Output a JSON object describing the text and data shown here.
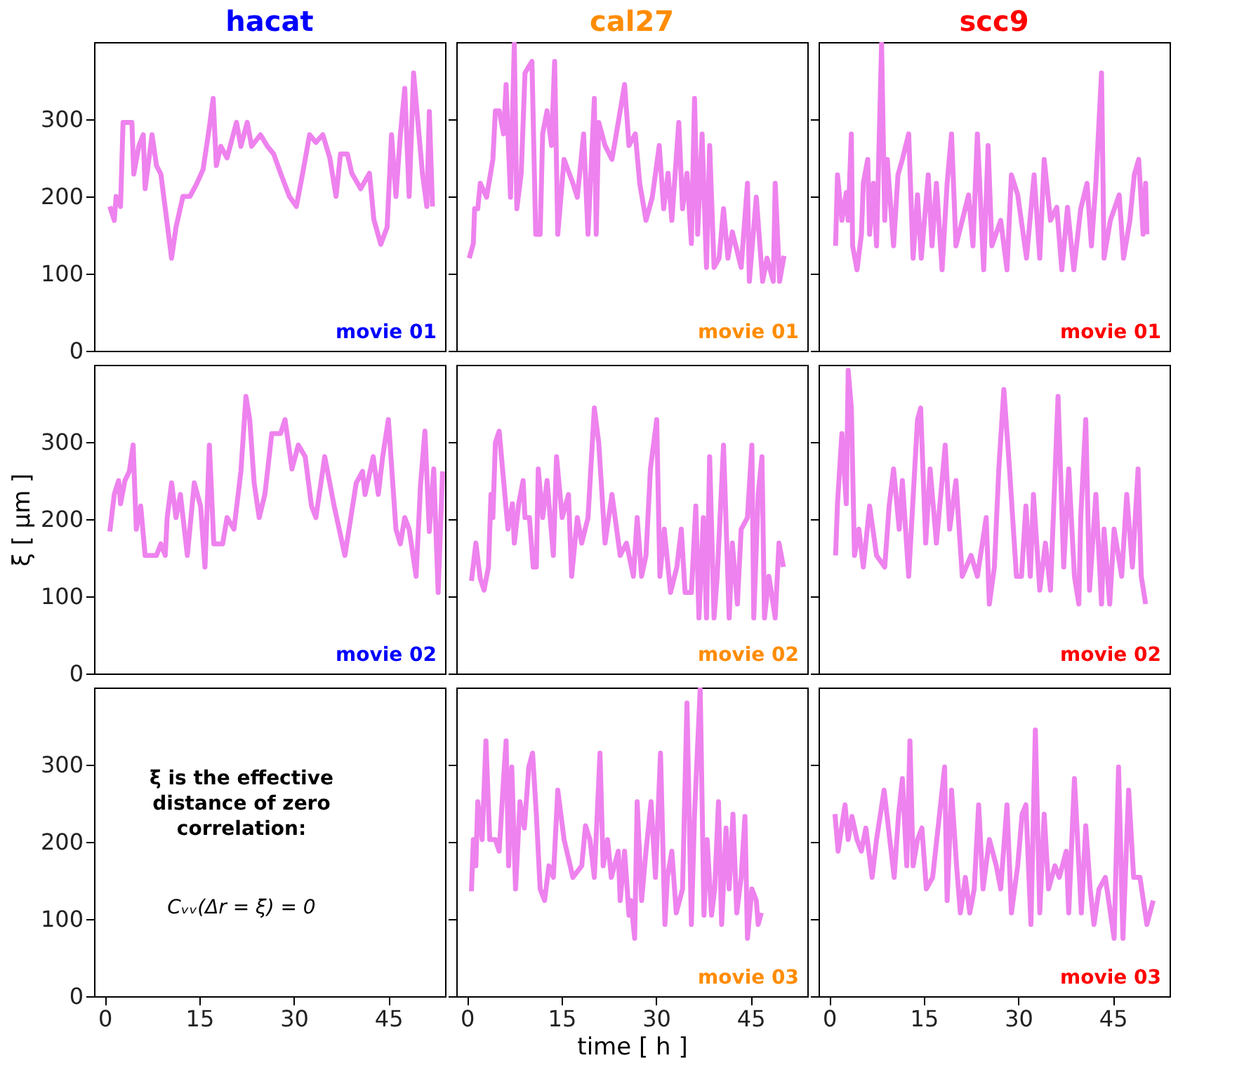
{
  "chart_data": [
    {
      "type": "line",
      "title": "hacat",
      "xlim": [
        -1.7,
        54
      ],
      "ylim": [
        0,
        400
      ],
      "yticks": [
        0,
        100,
        200,
        300
      ],
      "tick_labels": "y",
      "grid": false,
      "annotations": [
        "movie 01"
      ],
      "series": [
        {
          "color": "#ee82ee",
          "x": [
            0.8,
            1.5,
            1.8,
            2.5,
            2.9,
            4.3,
            4.6,
            5.4,
            6.1,
            6.4,
            7.5,
            8.2,
            8.9,
            10.6,
            11.3,
            12.4,
            13.5,
            14.5,
            15.6,
            16.6,
            17.2,
            17.7,
            18.4,
            19.4,
            20.9,
            21.6,
            22.6,
            23.3,
            24.7,
            25.8,
            26.8,
            27.9,
            29.3,
            30.4,
            31.4,
            32.5,
            33.5,
            34.6,
            35.7,
            36.7,
            37.4,
            38.5,
            39.2,
            40.6,
            42.0,
            42.7,
            43.8,
            44.8,
            45.5,
            46.2,
            46.9,
            47.6,
            48.3,
            49.0,
            50.4,
            51.1,
            51.5,
            52.0
          ],
          "values": [
            187,
            169,
            200,
            187,
            296,
            296,
            229,
            265,
            280,
            210,
            280,
            240,
            229,
            120,
            160,
            200,
            200,
            215,
            235,
            290,
            327,
            240,
            265,
            250,
            296,
            265,
            296,
            265,
            280,
            265,
            255,
            230,
            200,
            187,
            230,
            280,
            270,
            280,
            250,
            200,
            255,
            255,
            230,
            210,
            230,
            170,
            138,
            160,
            280,
            200,
            280,
            340,
            200,
            360,
            230,
            187,
            310,
            187
          ]
        }
      ]
    },
    {
      "type": "line",
      "title": "cal27",
      "xlim": [
        -1.7,
        54
      ],
      "ylim": [
        0,
        400
      ],
      "yticks": [
        0,
        100,
        200,
        300
      ],
      "tick_labels": false,
      "grid": false,
      "annotations": [
        "movie 01"
      ],
      "series": [
        {
          "color": "#ee82ee",
          "x": [
            0.35,
            1.0,
            1.2,
            1.7,
            2.1,
            3.1,
            4.1,
            4.5,
            5.1,
            5.8,
            6.2,
            6.9,
            7.5,
            7.9,
            8.6,
            9.2,
            10.3,
            10.9,
            11.6,
            12.0,
            12.7,
            13.4,
            13.9,
            14.4,
            15.4,
            16.8,
            17.5,
            18.5,
            19.2,
            20.2,
            20.5,
            20.9,
            21.9,
            23.0,
            24.0,
            25.0,
            25.7,
            26.7,
            27.4,
            28.4,
            29.4,
            30.5,
            31.2,
            31.9,
            32.5,
            33.6,
            34.2,
            34.9,
            35.6,
            36.1,
            36.6,
            37.3,
            38.0,
            38.5,
            39.2,
            40.0,
            40.7,
            41.4,
            42.1,
            43.5,
            44.5,
            44.8,
            45.9,
            46.9,
            47.6,
            48.6,
            48.9,
            49.6,
            50.3
          ],
          "values": [
            120,
            139,
            184,
            184,
            217,
            199,
            248,
            311,
            311,
            281,
            345,
            199,
            398,
            184,
            230,
            360,
            375,
            151,
            151,
            281,
            311,
            266,
            375,
            151,
            248,
            217,
            199,
            281,
            151,
            327,
            151,
            296,
            266,
            248,
            296,
            345,
            266,
            281,
            217,
            169,
            199,
            266,
            184,
            230,
            169,
            296,
            184,
            230,
            139,
            327,
            151,
            281,
            108,
            266,
            108,
            120,
            184,
            120,
            154,
            108,
            217,
            90,
            199,
            90,
            120,
            90,
            217,
            90,
            123
          ]
        }
      ]
    },
    {
      "type": "line",
      "title": "scc9",
      "xlim": [
        -1.7,
        54
      ],
      "ylim": [
        0,
        400
      ],
      "yticks": [
        0,
        100,
        200,
        300
      ],
      "tick_labels": false,
      "grid": false,
      "annotations": [
        "movie 01"
      ],
      "series": [
        {
          "color": "#ee82ee",
          "x": [
            1.0,
            1.3,
            2.0,
            2.7,
            3.0,
            3.5,
            3.7,
            4.4,
            5.1,
            5.4,
            6.1,
            6.4,
            7.0,
            7.5,
            8.3,
            8.8,
            9.2,
            10.2,
            10.9,
            11.6,
            12.6,
            13.3,
            14.0,
            14.6,
            15.7,
            16.3,
            17.0,
            17.9,
            18.7,
            19.4,
            20.1,
            21.1,
            22.1,
            22.8,
            23.5,
            24.5,
            25.2,
            25.8,
            27.2,
            28.2,
            28.9,
            29.9,
            31.3,
            32.5,
            33.4,
            34.1,
            35.1,
            36.1,
            36.9,
            37.8,
            38.8,
            39.9,
            40.9,
            41.6,
            42.3,
            43.2,
            43.6,
            44.6,
            46.0,
            46.7,
            47.7,
            48.4,
            49.1,
            49.8,
            50.2,
            50.4
          ],
          "values": [
            136,
            228,
            169,
            205,
            169,
            281,
            136,
            105,
            151,
            217,
            248,
            151,
            217,
            136,
            398,
            169,
            248,
            136,
            228,
            248,
            281,
            120,
            202,
            120,
            228,
            136,
            217,
            105,
            217,
            281,
            136,
            169,
            202,
            136,
            281,
            105,
            266,
            136,
            169,
            105,
            228,
            202,
            120,
            228,
            120,
            248,
            169,
            186,
            105,
            186,
            105,
            184,
            217,
            136,
            217,
            360,
            120,
            169,
            202,
            120,
            169,
            228,
            248,
            151,
            217,
            151
          ]
        }
      ]
    },
    {
      "type": "line",
      "xlim": [
        -1.7,
        54
      ],
      "ylim": [
        0,
        400
      ],
      "yticks": [
        0,
        100,
        200,
        300
      ],
      "tick_labels": "y",
      "grid": false,
      "ylabel": "ξ [ μm ]",
      "annotations": [
        "movie 02"
      ],
      "series": [
        {
          "color": "#ee82ee",
          "x": [
            0.8,
            1.5,
            2.2,
            2.5,
            3.2,
            3.9,
            4.5,
            5.0,
            5.7,
            6.4,
            8.2,
            8.9,
            9.6,
            9.9,
            10.6,
            11.3,
            12.0,
            13.1,
            14.2,
            15.2,
            15.9,
            16.6,
            17.3,
            18.7,
            19.4,
            20.5,
            21.6,
            22.4,
            23.0,
            23.7,
            24.5,
            25.4,
            26.5,
            27.9,
            28.6,
            29.7,
            30.7,
            31.8,
            32.8,
            33.5,
            34.9,
            36.4,
            38.1,
            39.9,
            40.9,
            41.3,
            42.6,
            43.4,
            44.1,
            45.0,
            46.2,
            46.9,
            47.6,
            48.3,
            49.4,
            50.1,
            50.8,
            51.5,
            52.2,
            52.9,
            53.6
          ],
          "values": [
            184,
            232,
            250,
            220,
            250,
            262,
            296,
            187,
            217,
            153,
            153,
            168,
            153,
            202,
            247,
            202,
            232,
            153,
            247,
            217,
            138,
            296,
            168,
            168,
            202,
            187,
            262,
            359,
            329,
            247,
            202,
            232,
            311,
            311,
            329,
            265,
            296,
            281,
            217,
            202,
            281,
            217,
            153,
            247,
            262,
            232,
            281,
            232,
            281,
            329,
            187,
            168,
            202,
            187,
            126,
            244,
            314,
            184,
            265,
            105,
            262
          ]
        }
      ]
    },
    {
      "type": "line",
      "xlim": [
        -1.7,
        54
      ],
      "ylim": [
        0,
        400
      ],
      "yticks": [
        0,
        100,
        200,
        300
      ],
      "tick_labels": false,
      "grid": false,
      "annotations": [
        "movie 02"
      ],
      "series": [
        {
          "color": "#ee82ee",
          "x": [
            0.7,
            1.4,
            2.1,
            2.7,
            3.4,
            3.8,
            4.1,
            4.5,
            5.1,
            5.8,
            6.5,
            7.2,
            7.5,
            8.2,
            8.9,
            9.2,
            9.9,
            10.5,
            11.0,
            11.3,
            12.0,
            12.7,
            13.7,
            14.2,
            15.1,
            16.1,
            16.6,
            17.5,
            18.2,
            19.2,
            20.2,
            20.9,
            21.9,
            23.0,
            24.3,
            25.3,
            26.4,
            27.0,
            27.7,
            28.4,
            29.1,
            30.1,
            30.6,
            31.3,
            32.3,
            33.3,
            34.0,
            34.6,
            35.6,
            36.3,
            36.8,
            37.5,
            38.0,
            38.5,
            39.2,
            39.7,
            40.7,
            41.6,
            42.1,
            42.9,
            43.5,
            44.5,
            45.2,
            45.5,
            46.2,
            46.8,
            47.2,
            47.9,
            48.9,
            49.5,
            50.2
          ],
          "values": [
            120,
            169,
            123,
            108,
            138,
            232,
            202,
            299,
            314,
            250,
            187,
            220,
            169,
            220,
            250,
            202,
            202,
            138,
            138,
            265,
            202,
            250,
            153,
            281,
            202,
            232,
            126,
            202,
            169,
            202,
            344,
            299,
            169,
            232,
            153,
            169,
            126,
            202,
            126,
            153,
            265,
            329,
            126,
            187,
            105,
            138,
            187,
            105,
            105,
            217,
            72,
            202,
            72,
            281,
            72,
            126,
            296,
            72,
            169,
            90,
            187,
            202,
            296,
            72,
            232,
            281,
            72,
            126,
            72,
            169,
            138
          ]
        }
      ]
    },
    {
      "type": "line",
      "xlim": [
        -1.7,
        54
      ],
      "ylim": [
        0,
        400
      ],
      "yticks": [
        0,
        100,
        200,
        300
      ],
      "tick_labels": false,
      "grid": false,
      "annotations": [
        "movie 02"
      ],
      "series": [
        {
          "color": "#ee82ee",
          "x": [
            1.0,
            1.3,
            2.0,
            2.7,
            3.0,
            3.5,
            4.0,
            4.7,
            5.4,
            6.4,
            7.5,
            8.8,
            9.5,
            10.2,
            11.1,
            11.6,
            12.6,
            14.0,
            14.5,
            15.3,
            16.0,
            17.0,
            18.4,
            19.1,
            20.1,
            21.1,
            22.5,
            23.5,
            24.9,
            25.4,
            26.2,
            26.9,
            27.7,
            28.6,
            29.7,
            30.5,
            31.2,
            31.9,
            32.4,
            33.4,
            34.3,
            35.1,
            36.3,
            37.2,
            38.0,
            38.9,
            39.6,
            39.9,
            40.7,
            41.3,
            42.3,
            43.2,
            43.6,
            44.5,
            45.2,
            46.4,
            47.2,
            48.1,
            49.0,
            49.5,
            50.2
          ],
          "values": [
            153,
            220,
            311,
            220,
            393,
            344,
            153,
            187,
            138,
            217,
            153,
            138,
            217,
            265,
            187,
            250,
            126,
            329,
            344,
            169,
            265,
            169,
            296,
            187,
            250,
            126,
            153,
            126,
            202,
            90,
            138,
            265,
            368,
            265,
            126,
            126,
            217,
            126,
            232,
            108,
            169,
            108,
            359,
            138,
            265,
            126,
            90,
            202,
            329,
            108,
            232,
            90,
            187,
            90,
            187,
            126,
            232,
            138,
            265,
            126,
            90
          ]
        }
      ]
    },
    {
      "type": "line",
      "xlim": [
        -1.7,
        54
      ],
      "ylim": [
        0,
        400
      ],
      "xticks": [
        0,
        15,
        30,
        45
      ],
      "yticks": [
        0,
        100,
        200,
        300
      ],
      "grid": false,
      "annotations": [
        "ξ is the effective\ndistance of zero\ncorrelation:",
        "Cᵥᵥ(Δr = ξ) = 0"
      ]
    },
    {
      "type": "line",
      "xlim": [
        -1.7,
        54
      ],
      "ylim": [
        0,
        400
      ],
      "xticks": [
        0,
        15,
        30,
        45
      ],
      "yticks": [
        0,
        100,
        200,
        300
      ],
      "tick_labels": "x",
      "grid": false,
      "xlabel": "time [ h ]",
      "annotations": [
        "movie 03"
      ],
      "series": [
        {
          "color": "#ee82ee",
          "x": [
            0.7,
            1.0,
            1.4,
            1.7,
            2.4,
            3.0,
            3.6,
            4.5,
            5.1,
            5.8,
            6.2,
            6.6,
            7.1,
            7.7,
            8.4,
            9.1,
            9.8,
            10.4,
            11.0,
            11.6,
            12.3,
            13.0,
            13.7,
            14.4,
            15.4,
            16.8,
            18.2,
            18.8,
            19.5,
            20.2,
            21.1,
            21.6,
            22.3,
            22.9,
            24.0,
            24.3,
            25.0,
            25.7,
            26.0,
            26.6,
            27.0,
            27.7,
            28.4,
            29.2,
            29.9,
            30.7,
            31.4,
            31.8,
            32.5,
            33.2,
            34.2,
            34.9,
            35.6,
            36.1,
            37.0,
            37.6,
            38.1,
            38.8,
            39.3,
            39.9,
            40.4,
            41.1,
            41.6,
            42.2,
            42.8,
            43.5,
            44.1,
            44.5,
            45.2,
            45.9,
            46.2,
            46.7
          ],
          "values": [
            136,
            203,
            169,
            252,
            203,
            331,
            203,
            203,
            188,
            282,
            331,
            169,
            297,
            139,
            252,
            218,
            297,
            315,
            236,
            139,
            124,
            169,
            154,
            267,
            203,
            154,
            169,
            221,
            203,
            154,
            315,
            169,
            203,
            154,
            188,
            124,
            188,
            105,
            124,
            75,
            252,
            124,
            188,
            252,
            154,
            315,
            93,
            154,
            188,
            108,
            139,
            380,
            93,
            236,
            398,
            105,
            203,
            105,
            139,
            252,
            93,
            218,
            139,
            236,
            108,
            154,
            233,
            75,
            139,
            124,
            93,
            108
          ]
        }
      ]
    },
    {
      "type": "line",
      "xlim": [
        -1.7,
        54
      ],
      "ylim": [
        0,
        400
      ],
      "xticks": [
        0,
        15,
        30,
        45
      ],
      "yticks": [
        0,
        100,
        200,
        300
      ],
      "tick_labels": "x",
      "grid": false,
      "annotations": [
        "movie 03"
      ],
      "series": [
        {
          "color": "#ee82ee",
          "x": [
            0.9,
            1.4,
            2.0,
            2.5,
            3.0,
            3.6,
            4.4,
            5.1,
            5.8,
            6.8,
            7.5,
            8.7,
            9.6,
            10.3,
            11.0,
            11.6,
            12.3,
            12.8,
            13.3,
            14.0,
            14.7,
            15.4,
            16.4,
            17.5,
            18.3,
            18.7,
            19.4,
            20.2,
            20.8,
            21.6,
            22.3,
            23.0,
            23.7,
            24.4,
            25.4,
            26.5,
            27.2,
            28.2,
            28.9,
            29.9,
            30.6,
            31.2,
            32.0,
            32.7,
            33.4,
            34.1,
            34.8,
            35.8,
            36.5,
            37.6,
            38.0,
            38.9,
            40.0,
            40.7,
            41.4,
            42.0,
            42.8,
            43.8,
            45.2,
            45.9,
            46.6,
            47.5,
            48.3,
            49.3,
            50.4,
            51.4
          ],
          "values": [
            236,
            188,
            221,
            248,
            203,
            233,
            203,
            188,
            218,
            154,
            203,
            267,
            203,
            154,
            236,
            282,
            169,
            331,
            169,
            203,
            218,
            139,
            154,
            236,
            297,
            124,
            267,
            169,
            108,
            154,
            108,
            139,
            248,
            139,
            203,
            169,
            139,
            248,
            108,
            169,
            236,
            248,
            93,
            345,
            108,
            236,
            139,
            169,
            154,
            188,
            108,
            282,
            108,
            221,
            139,
            93,
            139,
            154,
            75,
            297,
            75,
            267,
            154,
            154,
            93,
            124
          ]
        }
      ]
    }
  ]
}
